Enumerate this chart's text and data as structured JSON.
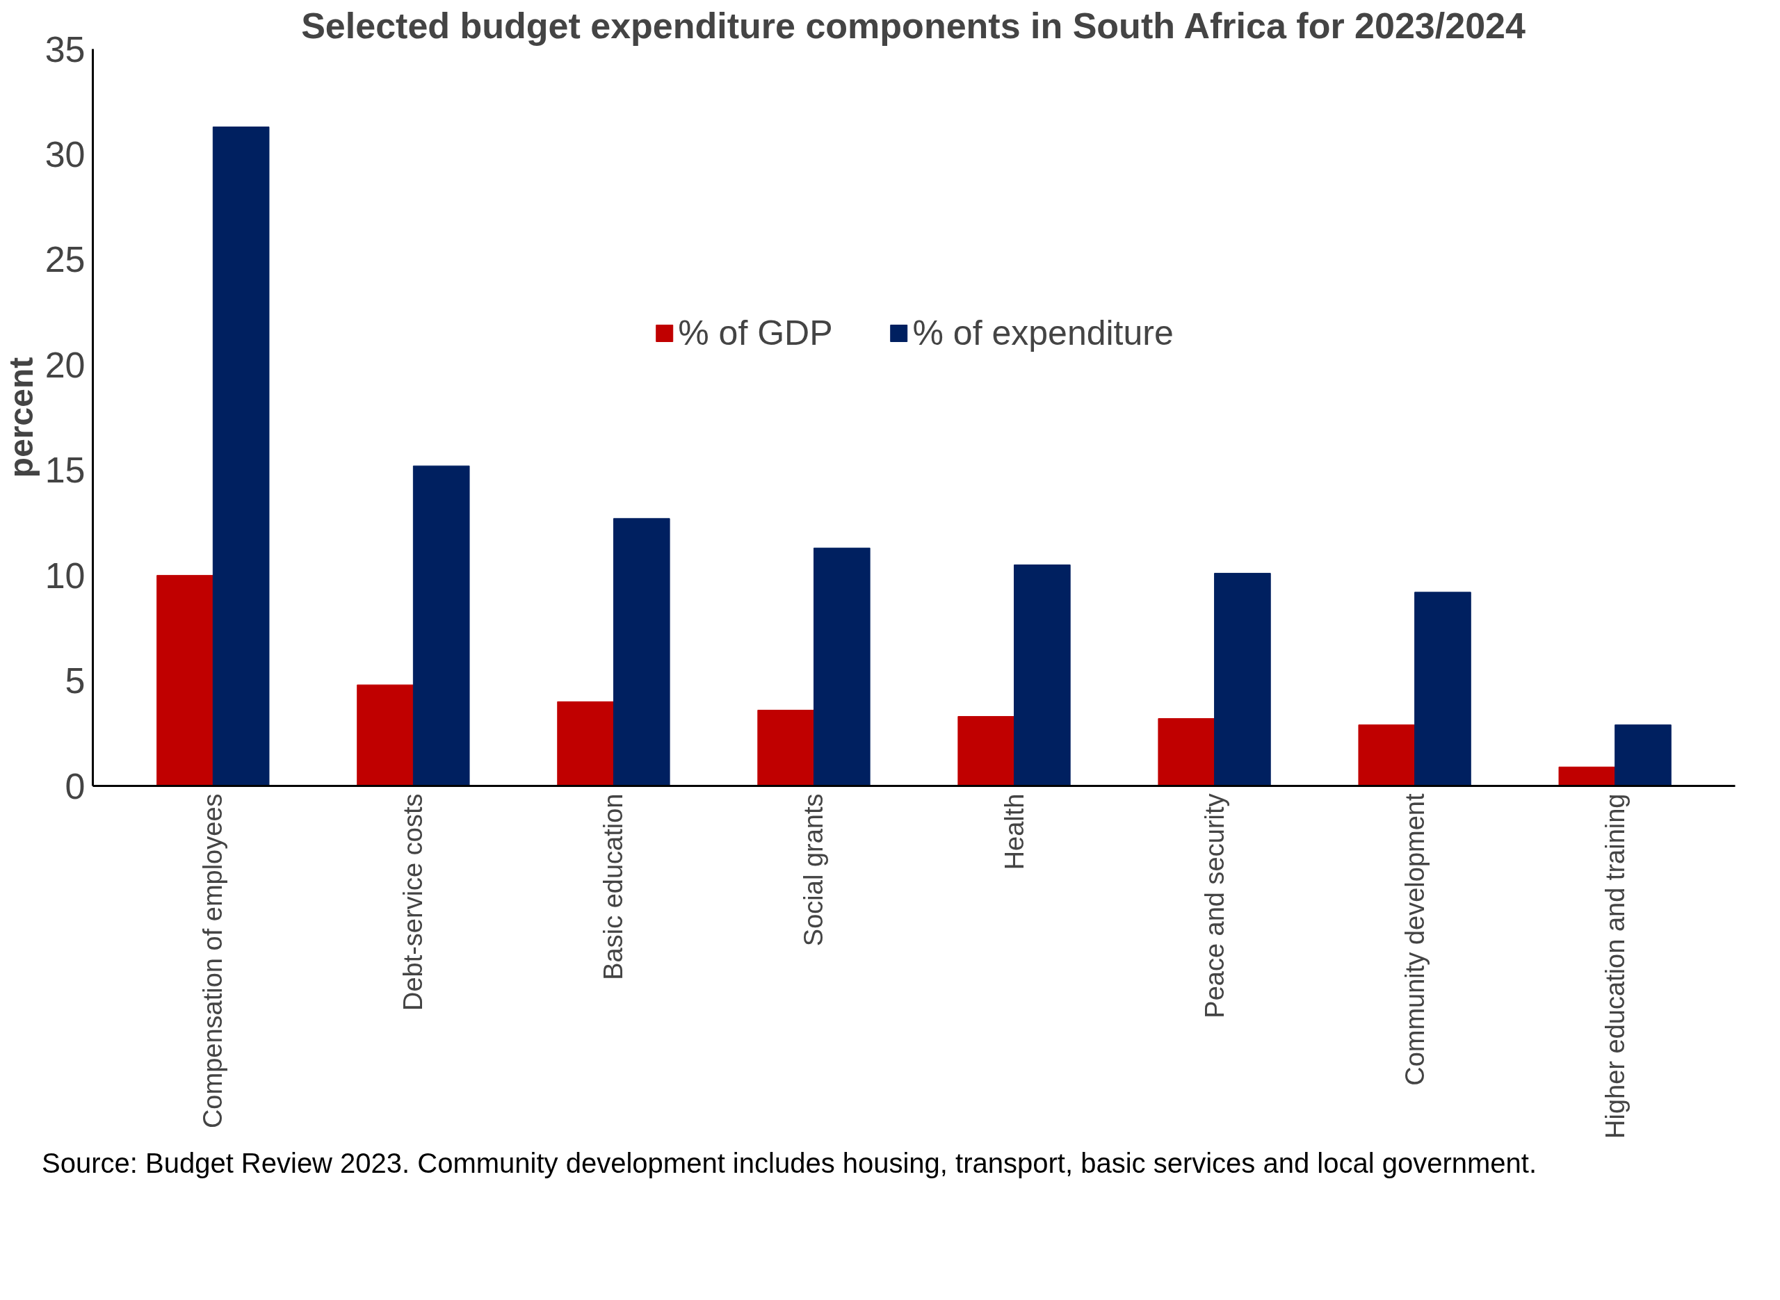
{
  "chart_data": {
    "type": "bar",
    "title": "Selected budget expenditure components in South Africa for 2023/2024",
    "ylabel": "percent",
    "categories": [
      "Compensation of employees",
      "Debt-service costs",
      "Basic education",
      "Social grants",
      "Health",
      "Peace and security",
      "Community development",
      "Higher education and training"
    ],
    "series": [
      {
        "name": "% of GDP",
        "color": "#c00000",
        "values": [
          10.0,
          4.8,
          4.0,
          3.6,
          3.3,
          3.2,
          2.9,
          0.9
        ]
      },
      {
        "name": "% of expenditure",
        "color": "#002060",
        "values": [
          31.3,
          15.2,
          12.7,
          11.3,
          10.5,
          10.1,
          9.2,
          2.9
        ]
      }
    ],
    "ylim": [
      0,
      35
    ],
    "yticks": [
      0,
      5,
      10,
      15,
      20,
      25,
      30,
      35
    ],
    "legend": "top",
    "annotations": [
      "Source: Budget Review 2023. Community development includes housing, transport, basic services and local government."
    ]
  }
}
